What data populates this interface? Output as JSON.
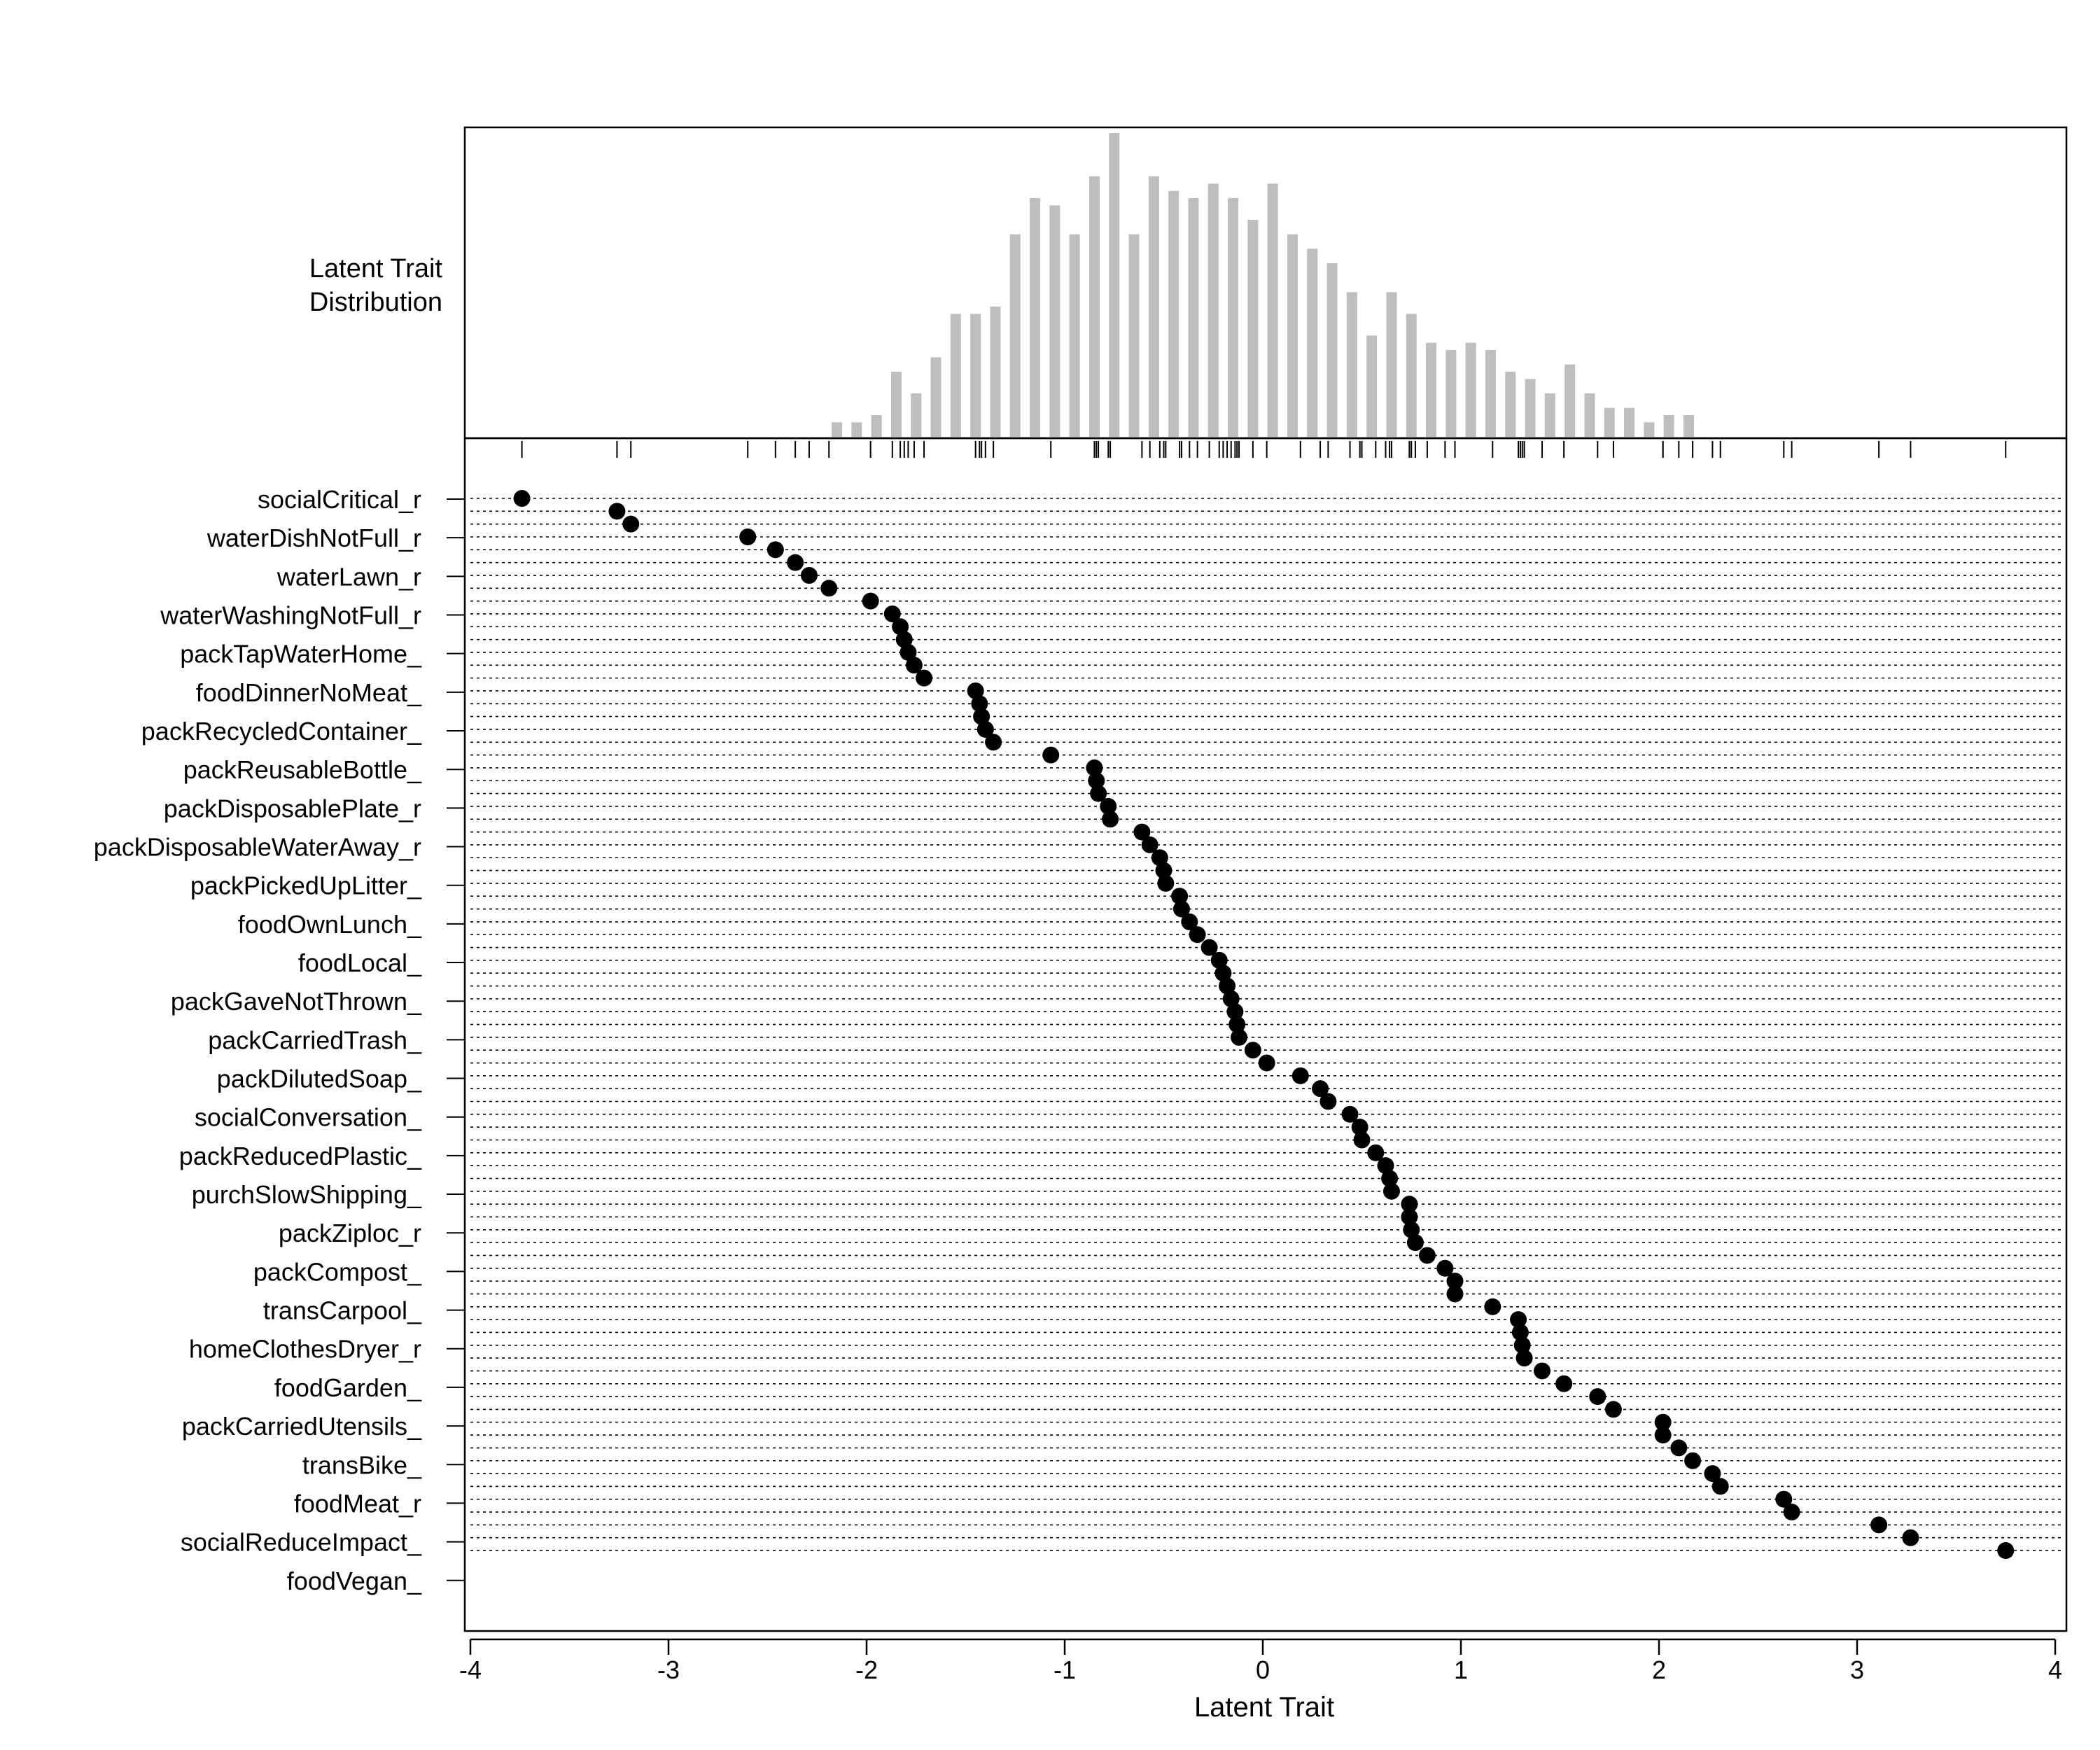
{
  "chart_data": {
    "type": "scatter",
    "subtype": "wright-map",
    "hist_label_line1": "Latent Trait",
    "hist_label_line2": "Distribution",
    "xlabel": "Latent Trait",
    "xlim": [
      -4,
      4
    ],
    "x_ticks": [
      "-4",
      "-3",
      "-2",
      "-1",
      "0",
      "1",
      "2",
      "3",
      "4"
    ],
    "grid": "dotted horizontal guide line per item",
    "item_labels": [
      "socialCritical_r",
      "waterDishNotFull_r",
      "waterLawn_r",
      "waterWashingNotFull_r",
      "packTapWaterHome_",
      "foodDinnerNoMeat_",
      "packRecycledContainer_",
      "packReusableBottle_",
      "packDisposablePlate_r",
      "packDisposableWaterAway_r",
      "packPickedUpLitter_",
      "foodOwnLunch_",
      "foodLocal_",
      "packGaveNotThrown_",
      "packCarriedTrash_",
      "packDilutedSoap_",
      "socialConversation_",
      "packReducedPlastic_",
      "purchSlowShipping_",
      "packZiploc_r",
      "packCompost_",
      "transCarpool_",
      "homeClothesDryer_r",
      "foodGarden_",
      "packCarriedUtensils_",
      "transBike_",
      "foodMeat_r",
      "socialReduceImpact_",
      "foodVegan_"
    ],
    "thresholds": [
      -3.74,
      -3.26,
      -3.19,
      -2.6,
      -2.46,
      -2.36,
      -2.29,
      -2.19,
      -1.98,
      -1.87,
      -1.83,
      -1.81,
      -1.79,
      -1.76,
      -1.71,
      -1.45,
      -1.43,
      -1.42,
      -1.4,
      -1.36,
      -1.07,
      -0.85,
      -0.84,
      -0.83,
      -0.78,
      -0.77,
      -0.61,
      -0.57,
      -0.52,
      -0.5,
      -0.49,
      -0.42,
      -0.41,
      -0.37,
      -0.33,
      -0.27,
      -0.22,
      -0.2,
      -0.18,
      -0.16,
      -0.14,
      -0.13,
      -0.12,
      -0.05,
      0.02,
      0.19,
      0.29,
      0.33,
      0.44,
      0.49,
      0.5,
      0.57,
      0.62,
      0.64,
      0.65,
      0.74,
      0.74,
      0.75,
      0.77,
      0.83,
      0.92,
      0.97,
      0.97,
      1.16,
      1.29,
      1.3,
      1.31,
      1.32,
      1.41,
      1.52,
      1.69,
      1.77,
      2.02,
      2.02,
      2.1,
      2.17,
      2.27,
      2.31,
      2.63,
      2.67,
      3.11,
      3.27,
      3.75
    ],
    "distribution": {
      "bin_centers": [
        -2.15,
        -2.05,
        -1.95,
        -1.85,
        -1.75,
        -1.65,
        -1.55,
        -1.45,
        -1.35,
        -1.25,
        -1.15,
        -1.05,
        -0.95,
        -0.85,
        -0.75,
        -0.65,
        -0.55,
        -0.45,
        -0.35,
        -0.25,
        -0.15,
        -0.05,
        0.05,
        0.15,
        0.25,
        0.35,
        0.45,
        0.55,
        0.65,
        0.75,
        0.85,
        0.95,
        1.05,
        1.15,
        1.25,
        1.35,
        1.45,
        1.55,
        1.65,
        1.75,
        1.85,
        1.95,
        2.05,
        2.15
      ],
      "counts": [
        2,
        2,
        3,
        9,
        6,
        11,
        17,
        17,
        18,
        28,
        33,
        32,
        28,
        36,
        42,
        28,
        36,
        34,
        33,
        35,
        33,
        30,
        35,
        28,
        26,
        24,
        20,
        14,
        20,
        17,
        13,
        12,
        13,
        12,
        9,
        8,
        6,
        10,
        6,
        4,
        4,
        2,
        3,
        3
      ]
    },
    "tick_label_x_values": [
      -4,
      -3,
      -2,
      -1,
      0,
      1,
      2,
      3,
      4
    ]
  }
}
